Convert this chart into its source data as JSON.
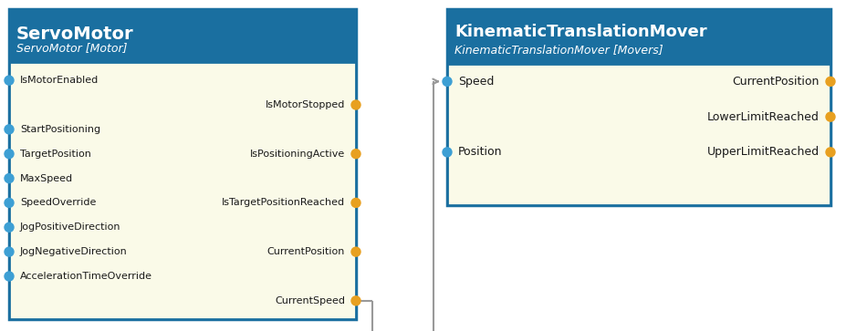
{
  "header_color": "#1a6fa0",
  "header_text_color": "#ffffff",
  "body_color": "#fafae8",
  "border_color": "#1a6fa0",
  "blue_dot_color": "#3d9fd4",
  "orange_dot_color": "#e8a020",
  "connector_color": "#999999",
  "text_color": "#1a1a1a",
  "servo_title": "ServoMotor",
  "servo_subtitle": "ServoMotor [Motor]",
  "servo_left_inputs": [
    "IsMotorEnabled",
    "StartPositioning",
    "TargetPosition",
    "MaxSpeed",
    "SpeedOverride",
    "JogPositiveDirection",
    "JogNegativeDirection",
    "AccelerationTimeOverride"
  ],
  "servo_right_outputs": [
    {
      "label": "IsMotorStopped",
      "row": 1
    },
    {
      "label": "IsPositioningActive",
      "row": 3
    },
    {
      "label": "IsTargetPositionReached",
      "row": 5
    },
    {
      "label": "CurrentPosition",
      "row": 7
    },
    {
      "label": "CurrentSpeed",
      "row": 9
    }
  ],
  "ktm_title": "KinematicTranslationMover",
  "ktm_subtitle": "KinematicTranslationMover [Movers]",
  "ktm_left_inputs": [
    "Speed",
    "Position"
  ],
  "ktm_right_outputs": [
    "CurrentPosition",
    "LowerLimitReached",
    "UpperLimitReached"
  ],
  "fig_w": 9.27,
  "fig_h": 3.63,
  "dpi": 100
}
